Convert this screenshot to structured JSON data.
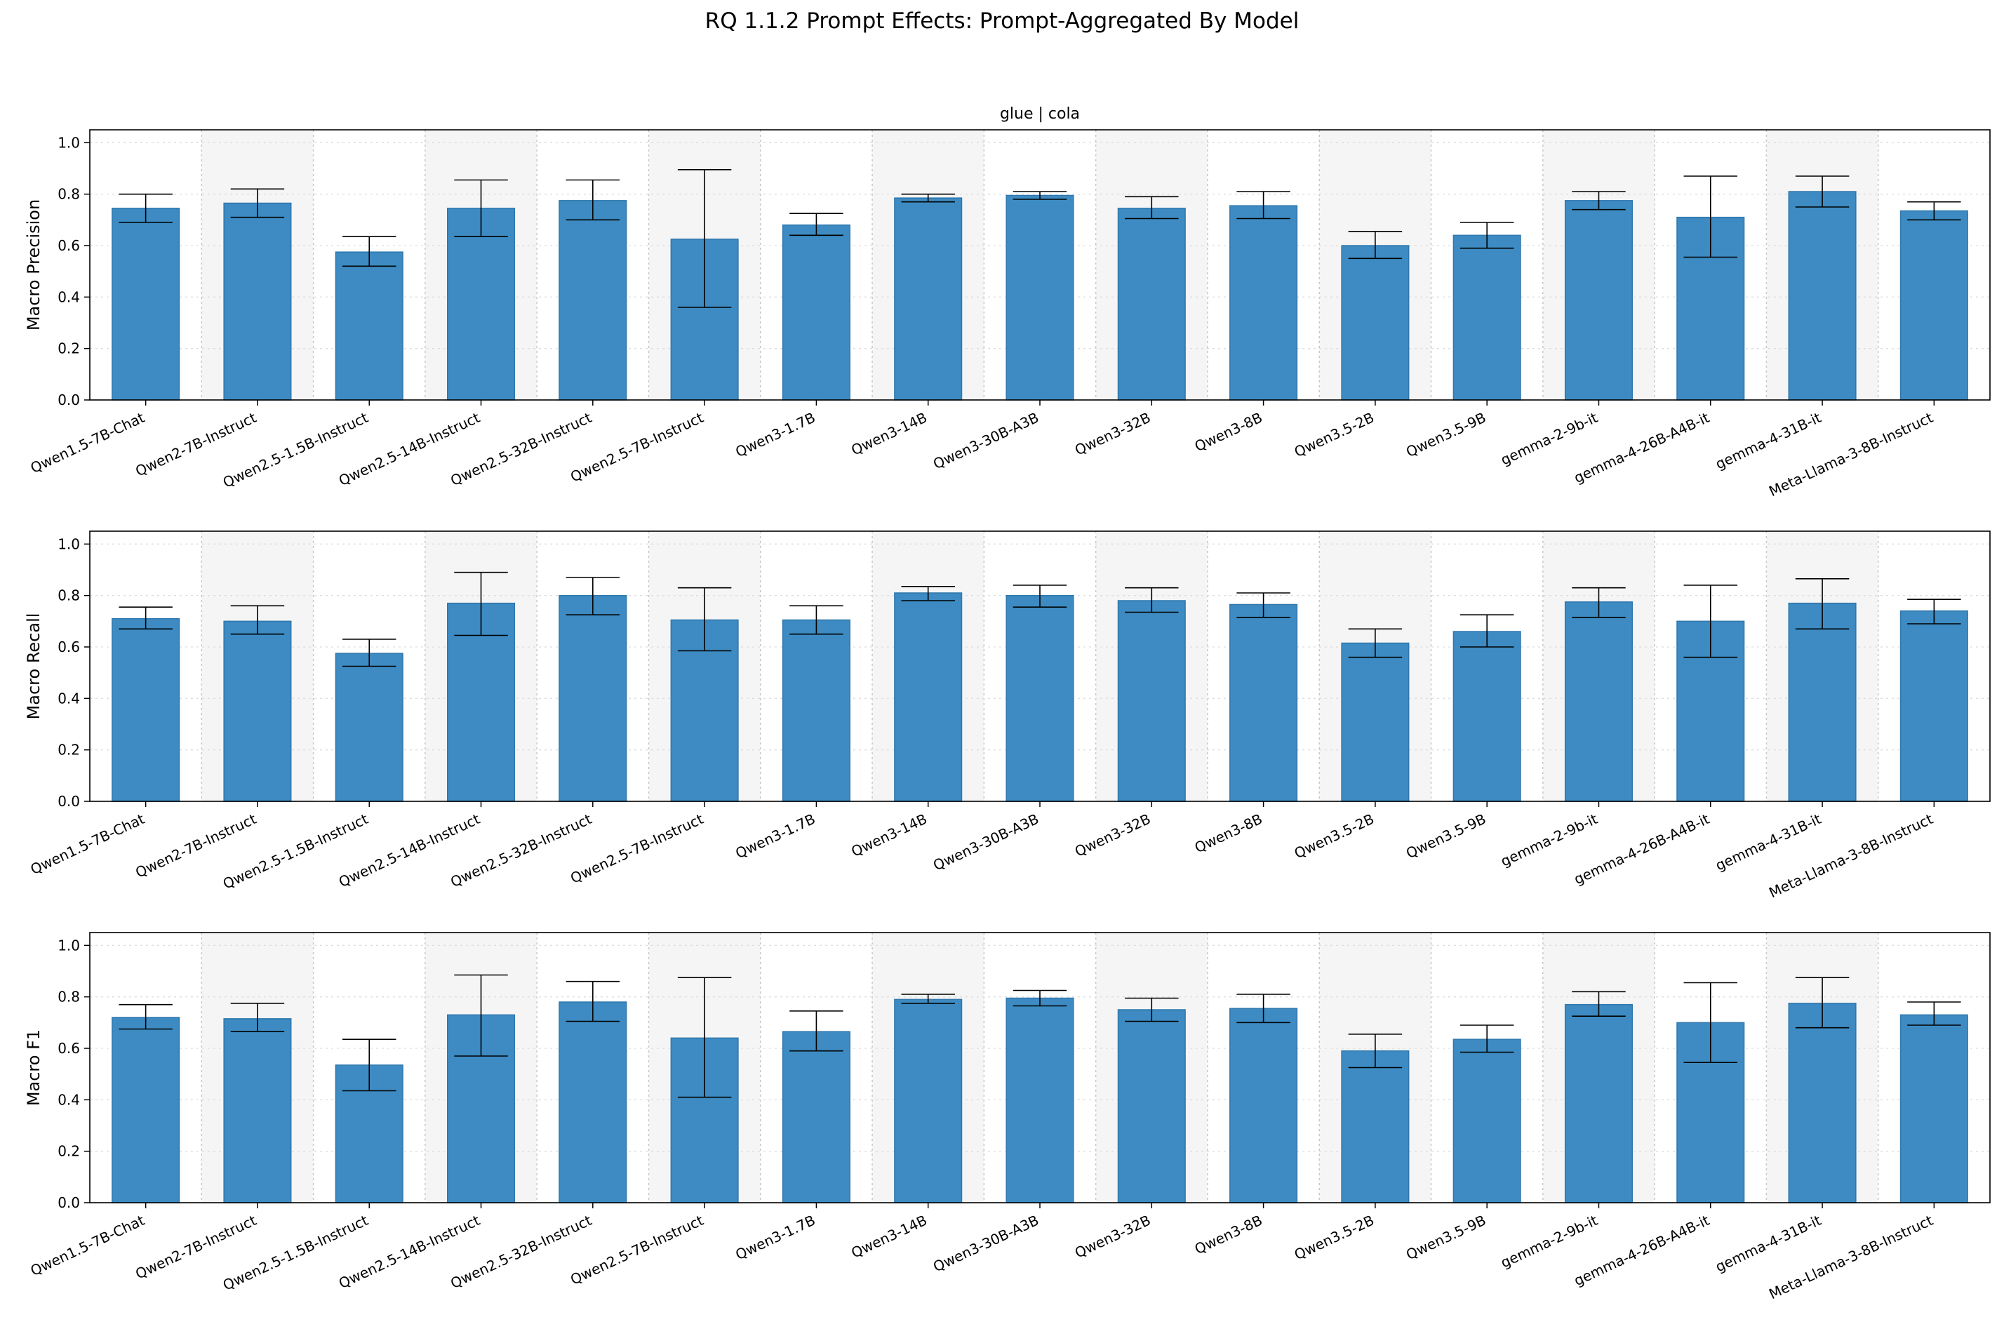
{
  "figure": {
    "title": "RQ 1.1.2 Prompt Effects: Prompt-Aggregated By Model"
  },
  "colors": {
    "bar": "#3d8bc2",
    "bar_edge": "#2f77ad",
    "error_bar": "#000000",
    "band_shade": "#f5f5f5",
    "grid": "#dddddd"
  },
  "chart_data": [
    {
      "type": "bar",
      "title": "glue | cola",
      "ylabel": "Macro Precision",
      "ylim": [
        0,
        1.05
      ],
      "yticks": [
        "0.0",
        "0.2",
        "0.4",
        "0.6",
        "0.8",
        "1.0"
      ],
      "grid": true,
      "categories": [
        "Qwen1.5-7B-Chat",
        "Qwen2-7B-Instruct",
        "Qwen2.5-1.5B-Instruct",
        "Qwen2.5-14B-Instruct",
        "Qwen2.5-32B-Instruct",
        "Qwen2.5-7B-Instruct",
        "Qwen3-1.7B",
        "Qwen3-14B",
        "Qwen3-30B-A3B",
        "Qwen3-32B",
        "Qwen3-8B",
        "Qwen3.5-2B",
        "Qwen3.5-9B",
        "gemma-2-9b-it",
        "gemma-4-26B-A4B-it",
        "gemma-4-31B-it",
        "Meta-Llama-3-8B-Instruct"
      ],
      "values": [
        0.745,
        0.765,
        0.575,
        0.745,
        0.775,
        0.625,
        0.68,
        0.785,
        0.795,
        0.745,
        0.755,
        0.6,
        0.64,
        0.775,
        0.71,
        0.81,
        0.735
      ],
      "err_low": [
        0.69,
        0.71,
        0.52,
        0.635,
        0.7,
        0.36,
        0.64,
        0.77,
        0.78,
        0.705,
        0.705,
        0.55,
        0.59,
        0.74,
        0.555,
        0.75,
        0.7
      ],
      "err_high": [
        0.8,
        0.82,
        0.635,
        0.855,
        0.855,
        0.895,
        0.725,
        0.8,
        0.81,
        0.79,
        0.81,
        0.655,
        0.69,
        0.81,
        0.87,
        0.87,
        0.77
      ]
    },
    {
      "type": "bar",
      "title": "",
      "ylabel": "Macro Recall",
      "ylim": [
        0,
        1.05
      ],
      "yticks": [
        "0.0",
        "0.2",
        "0.4",
        "0.6",
        "0.8",
        "1.0"
      ],
      "grid": true,
      "categories": [
        "Qwen1.5-7B-Chat",
        "Qwen2-7B-Instruct",
        "Qwen2.5-1.5B-Instruct",
        "Qwen2.5-14B-Instruct",
        "Qwen2.5-32B-Instruct",
        "Qwen2.5-7B-Instruct",
        "Qwen3-1.7B",
        "Qwen3-14B",
        "Qwen3-30B-A3B",
        "Qwen3-32B",
        "Qwen3-8B",
        "Qwen3.5-2B",
        "Qwen3.5-9B",
        "gemma-2-9b-it",
        "gemma-4-26B-A4B-it",
        "gemma-4-31B-it",
        "Meta-Llama-3-8B-Instruct"
      ],
      "values": [
        0.71,
        0.7,
        0.575,
        0.77,
        0.8,
        0.705,
        0.705,
        0.81,
        0.8,
        0.78,
        0.765,
        0.615,
        0.66,
        0.775,
        0.7,
        0.77,
        0.74
      ],
      "err_low": [
        0.67,
        0.65,
        0.525,
        0.645,
        0.725,
        0.585,
        0.65,
        0.78,
        0.755,
        0.735,
        0.715,
        0.56,
        0.6,
        0.715,
        0.56,
        0.67,
        0.69
      ],
      "err_high": [
        0.755,
        0.76,
        0.63,
        0.89,
        0.87,
        0.83,
        0.76,
        0.835,
        0.84,
        0.83,
        0.81,
        0.67,
        0.725,
        0.83,
        0.84,
        0.865,
        0.785
      ]
    },
    {
      "type": "bar",
      "title": "",
      "ylabel": "Macro F1",
      "ylim": [
        0,
        1.05
      ],
      "yticks": [
        "0.0",
        "0.2",
        "0.4",
        "0.6",
        "0.8",
        "1.0"
      ],
      "grid": true,
      "categories": [
        "Qwen1.5-7B-Chat",
        "Qwen2-7B-Instruct",
        "Qwen2.5-1.5B-Instruct",
        "Qwen2.5-14B-Instruct",
        "Qwen2.5-32B-Instruct",
        "Qwen2.5-7B-Instruct",
        "Qwen3-1.7B",
        "Qwen3-14B",
        "Qwen3-30B-A3B",
        "Qwen3-32B",
        "Qwen3-8B",
        "Qwen3.5-2B",
        "Qwen3.5-9B",
        "gemma-2-9b-it",
        "gemma-4-26B-A4B-it",
        "gemma-4-31B-it",
        "Meta-Llama-3-8B-Instruct"
      ],
      "values": [
        0.72,
        0.715,
        0.535,
        0.73,
        0.78,
        0.64,
        0.665,
        0.79,
        0.795,
        0.75,
        0.755,
        0.59,
        0.635,
        0.77,
        0.7,
        0.775,
        0.73
      ],
      "err_low": [
        0.675,
        0.665,
        0.435,
        0.57,
        0.705,
        0.41,
        0.59,
        0.775,
        0.765,
        0.705,
        0.7,
        0.525,
        0.585,
        0.725,
        0.545,
        0.68,
        0.69
      ],
      "err_high": [
        0.77,
        0.775,
        0.635,
        0.885,
        0.86,
        0.875,
        0.745,
        0.81,
        0.825,
        0.795,
        0.81,
        0.655,
        0.69,
        0.82,
        0.855,
        0.875,
        0.78
      ]
    }
  ]
}
